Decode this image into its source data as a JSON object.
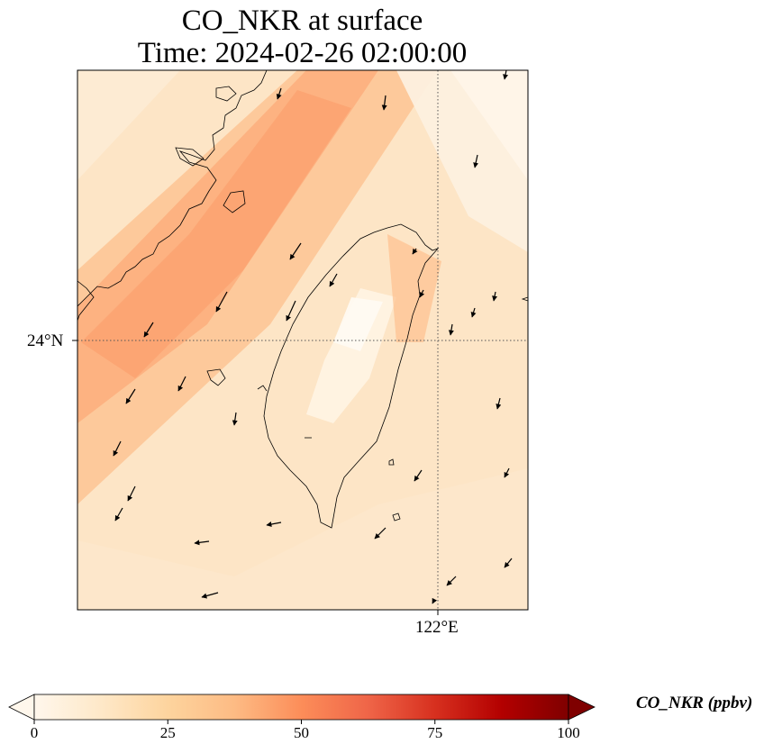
{
  "title": {
    "line1": "CO_NKR at surface",
    "line2": "Time: 2024-02-26 02:00:00"
  },
  "map": {
    "lat_tick": "24°N",
    "lon_tick": "122°E",
    "gridline_style": "dotted",
    "wind_vectors": "black arrows",
    "coastline_color": "#000000"
  },
  "colorbar": {
    "label": "CO_NKR (ppbv)",
    "colormap": "OrRd",
    "ticks": [
      "0",
      "25",
      "50",
      "75",
      "100"
    ],
    "tick_values": [
      0,
      25,
      50,
      75,
      100
    ],
    "range": [
      0,
      100
    ],
    "extend": "both",
    "colors": [
      "#fff7ec",
      "#fee8c8",
      "#fdd49e",
      "#fdbb84",
      "#fc8d59",
      "#ef6548",
      "#d7301f",
      "#b30000",
      "#7f0000"
    ]
  }
}
